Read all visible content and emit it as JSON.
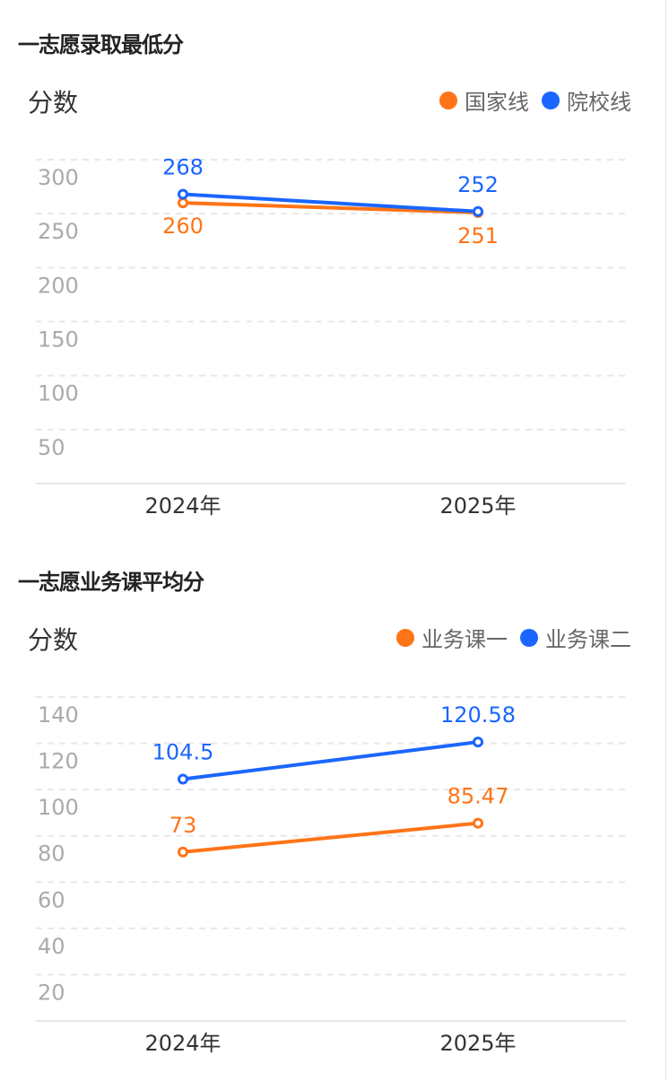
{
  "chart_data": [
    {
      "type": "line",
      "title": "一志愿录取最低分",
      "ylabel": "分数",
      "categories": [
        "2024年",
        "2025年"
      ],
      "ylim": [
        0,
        300
      ],
      "yticks": [
        300,
        250,
        200,
        150,
        100,
        50
      ],
      "grid": true,
      "legend_position": "top-right",
      "series": [
        {
          "name": "国家线",
          "color": "#ff7417",
          "values": [
            260,
            251
          ]
        },
        {
          "name": "院校线",
          "color": "#1a66ff",
          "values": [
            268,
            252
          ]
        }
      ]
    },
    {
      "type": "line",
      "title": "一志愿业务课平均分",
      "ylabel": "分数",
      "categories": [
        "2024年",
        "2025年"
      ],
      "ylim": [
        0,
        140
      ],
      "yticks": [
        140,
        120,
        100,
        80,
        60,
        40,
        20
      ],
      "grid": true,
      "legend_position": "top-right",
      "series": [
        {
          "name": "业务课一",
          "color": "#ff7417",
          "values": [
            73,
            85.47
          ]
        },
        {
          "name": "业务课二",
          "color": "#1a66ff",
          "values": [
            104.5,
            120.58
          ]
        }
      ]
    }
  ]
}
